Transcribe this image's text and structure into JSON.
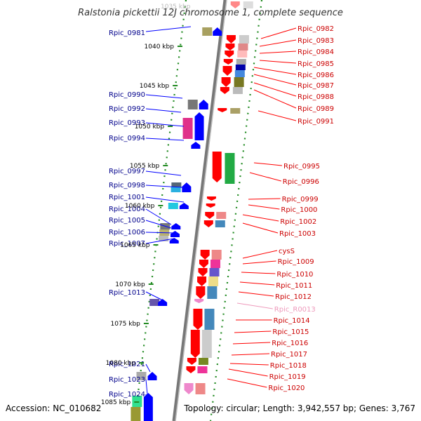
{
  "title": "Ralstonia pickettii 12J chromosome 1, complete sequence",
  "footer": {
    "accession": "Accession: NC_010682",
    "summary": "Topology: circular; Length: 3,942,557 bp; Genes: 3,767"
  },
  "top_tick_label": "1035 kbp",
  "kbp_ticks": [
    "1040 kbp",
    "1045 kbp",
    "1050 kbp",
    "1055 kbp",
    "1060 kbp",
    "1065 kbp",
    "1070 kbp",
    "1075 kbp",
    "1080 kbp",
    "1085 kbp"
  ],
  "colors": {
    "backbone": "#888888",
    "forward_strand": "#0000ff",
    "reverse_strand": "#ff0000",
    "left_label": "#00008b",
    "right_label": "#cc0000",
    "rna_label": "#ee99bb",
    "tick_green": "#228b22"
  },
  "left_genes": [
    "Rpic_0981",
    "Rpic_0990",
    "Rpic_0992",
    "Rpic_0993",
    "Rpic_0994",
    "Rpic_0997",
    "Rpic_0998",
    "Rpic_1001",
    "Rpic_1004",
    "Rpic_1005",
    "Rpic_1006",
    "Rpic_1007",
    "Rpic_1013",
    "Rpic_1021",
    "Rpic_1023",
    "Rpic_1024"
  ],
  "right_genes": [
    "Rpic_0982",
    "Rpic_0983",
    "Rpic_0984",
    "Rpic_0985",
    "Rpic_0986",
    "Rpic_0987",
    "Rpic_0988",
    "Rpic_0989",
    "Rpic_0991",
    "Rpic_0995",
    "Rpic_0996",
    "Rpic_0999",
    "Rpic_1000",
    "Rpic_1002",
    "Rpic_1003",
    "cysS",
    "Rpic_1009",
    "Rpic_1010",
    "Rpic_1011",
    "Rpic_1012",
    "Rpic_R0013",
    "Rpic_1014",
    "Rpic_1015",
    "Rpic_1016",
    "Rpic_1017",
    "Rpic_1018",
    "Rpic_1019",
    "Rpic_1020"
  ]
}
